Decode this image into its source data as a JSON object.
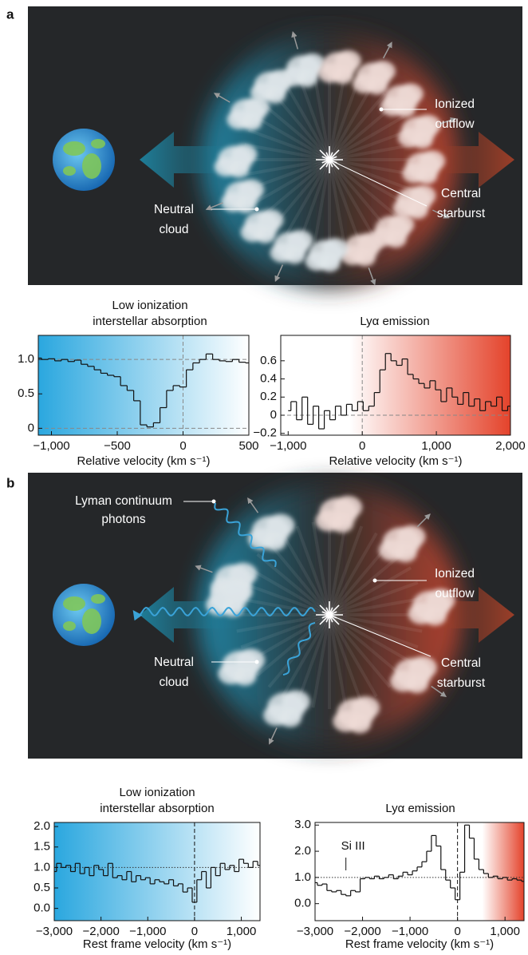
{
  "panel_labels": [
    "a",
    "b"
  ],
  "diagram_a": {
    "ionized": [
      "Ionized",
      "outflow"
    ],
    "neutral": [
      "Neutral",
      "cloud"
    ],
    "starburst": [
      "Central",
      "starburst"
    ]
  },
  "diagram_b": {
    "lyman": [
      "Lyman continuum",
      "photons"
    ],
    "ionized": [
      "Ionized",
      "outflow"
    ],
    "neutral": [
      "Neutral",
      "cloud"
    ],
    "starburst": [
      "Central",
      "starburst"
    ]
  },
  "chart_data": [
    {
      "type": "step",
      "title": [
        "Low ionization",
        "interstellar absorption"
      ],
      "xlabel": "Relative velocity (km s⁻¹)",
      "background": [
        "#2aa7df",
        "#ffffff"
      ],
      "color": "#111111",
      "x": [
        -1100,
        -1050,
        -1000,
        -950,
        -900,
        -850,
        -800,
        -750,
        -700,
        -650,
        -600,
        -550,
        -500,
        -450,
        -400,
        -350,
        -300,
        -250,
        -200,
        -150,
        -100,
        -50,
        0,
        50,
        100,
        150,
        200,
        250,
        300,
        350,
        400,
        450,
        500
      ],
      "values": [
        1.02,
        1.0,
        1.01,
        0.98,
        1.0,
        0.97,
        0.99,
        0.93,
        0.9,
        0.85,
        0.8,
        0.77,
        0.75,
        0.62,
        0.55,
        0.4,
        0.05,
        0.02,
        0.08,
        0.3,
        0.55,
        0.62,
        0.6,
        0.85,
        0.95,
        1.0,
        1.08,
        1.0,
        0.98,
        0.97,
        1.0,
        0.96,
        0.95
      ],
      "xlim": [
        -1100,
        500
      ],
      "ylim": [
        -0.1,
        1.35
      ],
      "xticks": [
        {
          "value": -1000,
          "label": "−1,000"
        },
        {
          "value": -500,
          "label": "−500"
        },
        0,
        500
      ],
      "yticks": [
        0,
        0.5,
        {
          "value": 1,
          "label": "1.0"
        }
      ],
      "hlines": [
        {
          "value": 1,
          "style": "dashed"
        },
        {
          "value": 0,
          "style": "dashed"
        }
      ],
      "vlines": [
        0
      ]
    },
    {
      "type": "step",
      "title": [
        "Lyα emission"
      ],
      "xlabel": "Relative velocity (km s⁻¹)",
      "background": [
        "#ffffff",
        "#e4432b"
      ],
      "color": "#111111",
      "x": [
        -1000,
        -925,
        -850,
        -775,
        -700,
        -625,
        -550,
        -475,
        -400,
        -325,
        -250,
        -175,
        -100,
        -25,
        50,
        125,
        200,
        275,
        350,
        425,
        500,
        575,
        650,
        725,
        800,
        875,
        950,
        1025,
        1100,
        1175,
        1250,
        1325,
        1400,
        1475,
        1550,
        1625,
        1700,
        1775,
        1850,
        1925,
        2000
      ],
      "values": [
        0.05,
        0.15,
        -0.05,
        0.2,
        -0.1,
        0.1,
        -0.15,
        0.05,
        -0.05,
        0.1,
        0,
        0.12,
        0.05,
        0.15,
        0.05,
        0.1,
        0.25,
        0.5,
        0.68,
        0.6,
        0.55,
        0.62,
        0.45,
        0.4,
        0.35,
        0.3,
        0.38,
        0.28,
        0.15,
        0.3,
        0.2,
        0.12,
        0.25,
        0.1,
        0.18,
        0.05,
        0.15,
        0.1,
        0.2,
        0.05,
        0.1
      ],
      "xlim": [
        -1100,
        2000
      ],
      "ylim": [
        -0.22,
        0.88
      ],
      "xticks": [
        {
          "value": -1000,
          "label": "−1,000"
        },
        0,
        {
          "value": 1000,
          "label": "1,000"
        },
        {
          "value": 2000,
          "label": "2,000"
        }
      ],
      "yticks": [
        {
          "value": -0.2,
          "label": "−0.2"
        },
        0,
        0.2,
        0.4,
        0.6
      ],
      "hlines": [
        {
          "value": 0,
          "style": "dashed"
        }
      ],
      "vlines": [
        0
      ]
    },
    {
      "type": "step",
      "title": [
        "Low ionization",
        "interstellar absorption"
      ],
      "xlabel": "Rest frame velocity (km s⁻¹)",
      "background": [
        "#2aa7df",
        "#ffffff"
      ],
      "color": "#111111",
      "x": [
        -3000,
        -2900,
        -2800,
        -2700,
        -2600,
        -2500,
        -2400,
        -2300,
        -2200,
        -2100,
        -2000,
        -1900,
        -1800,
        -1700,
        -1600,
        -1500,
        -1400,
        -1300,
        -1200,
        -1100,
        -1000,
        -900,
        -800,
        -700,
        -600,
        -500,
        -400,
        -300,
        -200,
        -100,
        0,
        100,
        200,
        300,
        400,
        500,
        600,
        700,
        800,
        900,
        1000,
        1100,
        1200,
        1300,
        1400
      ],
      "values": [
        0.9,
        1.1,
        1.0,
        1.05,
        0.9,
        1.1,
        0.85,
        1.0,
        0.8,
        1.05,
        0.95,
        0.8,
        1.1,
        0.75,
        0.8,
        0.7,
        0.9,
        0.65,
        0.8,
        0.7,
        0.75,
        0.6,
        0.7,
        0.65,
        0.6,
        0.7,
        0.55,
        0.6,
        0.4,
        0.5,
        0.15,
        0.7,
        0.9,
        0.5,
        1.0,
        0.8,
        1.1,
        0.95,
        1.05,
        0.9,
        1.2,
        1.1,
        1.0,
        1.15,
        1.05
      ],
      "xlim": [
        -3000,
        1400
      ],
      "ylim": [
        -0.3,
        2.1
      ],
      "xticks": [
        {
          "value": -3000,
          "label": "−3,000"
        },
        {
          "value": -2000,
          "label": "−2,000"
        },
        {
          "value": -1000,
          "label": "−1,000"
        },
        0,
        {
          "value": 1000,
          "label": "1,000"
        }
      ],
      "yticks": [
        {
          "value": 0,
          "label": "0.0"
        },
        0.5,
        {
          "value": 1,
          "label": "1.0"
        },
        1.5,
        {
          "value": 2,
          "label": "2.0"
        }
      ],
      "hlines": [
        {
          "value": 1,
          "style": "dotted"
        }
      ],
      "vlines": [
        0
      ]
    },
    {
      "type": "step",
      "title": [
        "Lyα emission"
      ],
      "xlabel": "Rest frame velocity (km s⁻¹)",
      "annotation": "Si III",
      "background": [
        "#ffffff",
        "#e4432b"
      ],
      "color": "#111111",
      "x": [
        -3000,
        -2900,
        -2800,
        -2700,
        -2600,
        -2500,
        -2400,
        -2300,
        -2200,
        -2100,
        -2000,
        -1900,
        -1800,
        -1700,
        -1600,
        -1500,
        -1400,
        -1300,
        -1200,
        -1100,
        -1000,
        -900,
        -800,
        -700,
        -600,
        -500,
        -400,
        -300,
        -200,
        -100,
        0,
        100,
        200,
        300,
        400,
        500,
        600,
        700,
        800,
        900,
        1000,
        1100,
        1200,
        1300,
        1400
      ],
      "values": [
        0.8,
        0.7,
        0.75,
        0.5,
        0.45,
        0.5,
        0.35,
        0.3,
        0.5,
        0.45,
        0.95,
        1.0,
        0.95,
        1.05,
        0.95,
        1.0,
        1.1,
        0.95,
        1.05,
        1.2,
        1.1,
        1.25,
        1.4,
        1.6,
        2.0,
        2.6,
        2.2,
        1.3,
        0.9,
        0.6,
        0.15,
        1.2,
        3.0,
        2.5,
        1.7,
        1.3,
        1.15,
        1.0,
        1.05,
        0.95,
        1.0,
        0.9,
        0.95,
        0.9,
        0.85
      ],
      "xlim": [
        -3000,
        1400
      ],
      "ylim": [
        -0.65,
        3.1
      ],
      "xticks": [
        {
          "value": -3000,
          "label": "−3,000"
        },
        {
          "value": -2000,
          "label": "−2,000"
        },
        {
          "value": -1000,
          "label": "−1,000"
        },
        0,
        {
          "value": 1000,
          "label": "1,000"
        }
      ],
      "yticks": [
        {
          "value": 0,
          "label": "0.0"
        },
        {
          "value": 1,
          "label": "1.0"
        },
        {
          "value": 2,
          "label": "2.0"
        },
        {
          "value": 3,
          "label": "3.0"
        }
      ],
      "hlines": [
        {
          "value": 1,
          "style": "dotted"
        }
      ],
      "vlines": [
        0
      ]
    }
  ]
}
